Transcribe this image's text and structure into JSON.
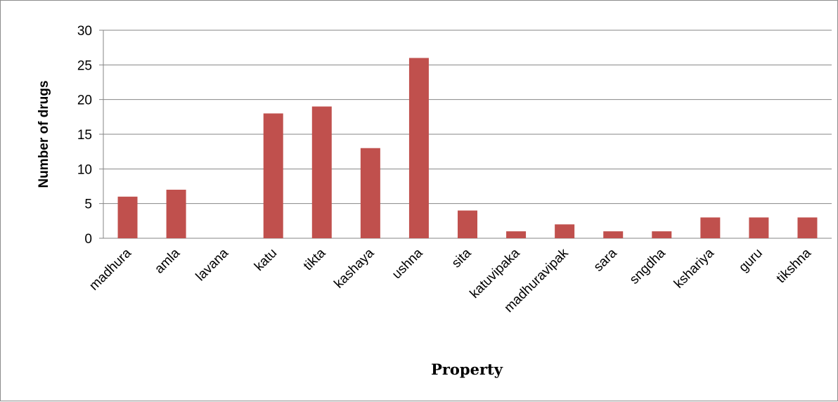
{
  "chart_data": {
    "type": "bar",
    "categories": [
      "madhura",
      "amla",
      "lavana",
      "katu",
      "tikta",
      "kashaya",
      "ushna",
      "sita",
      "katuvipaka",
      "madhuravipak",
      "sara",
      "sngdha",
      "kshariya",
      "guru",
      "tikshna"
    ],
    "values": [
      6,
      7,
      0,
      18,
      19,
      13,
      26,
      4,
      1,
      2,
      1,
      1,
      3,
      3,
      3
    ],
    "title": "",
    "xlabel": "Property",
    "ylabel": "Number of drugs",
    "ylim": [
      0,
      30
    ],
    "yticks": [
      "0",
      "5",
      "10",
      "15",
      "20",
      "25",
      "30"
    ],
    "grid": true,
    "legend": "none",
    "bar_color": "#c0504d",
    "grid_color": "#868686"
  }
}
